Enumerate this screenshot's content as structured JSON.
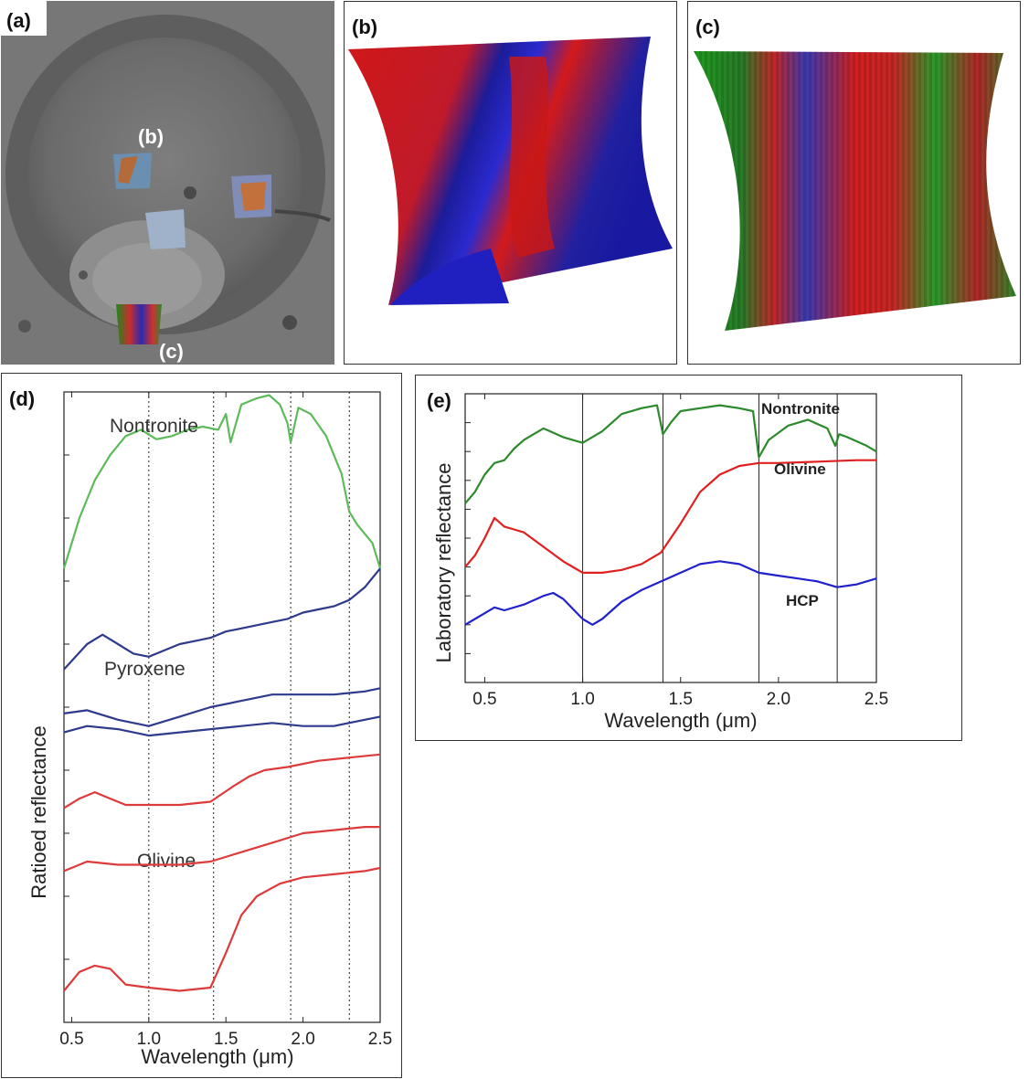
{
  "panels": {
    "a": {
      "label": "(a)",
      "inset_b": "(b)",
      "inset_c": "(c)"
    },
    "b": {
      "label": "(b)"
    },
    "c": {
      "label": "(c)"
    }
  },
  "colors": {
    "nontronite": "#5dbb5a",
    "pyroxene": "#2e3a8c",
    "olivine": "#dd3b3b",
    "lab_green": "#2b8a2b",
    "lab_red": "#e02020",
    "lab_blue": "#2222cc"
  },
  "chart_data": [
    {
      "panel_label": "(d)",
      "type": "line",
      "xlabel": "Wavelength (μm)",
      "ylabel": "Ratioed reflectance",
      "xlim": [
        0.45,
        2.5
      ],
      "x_ticks": [
        "0.5",
        "1.0",
        "1.5",
        "2.0",
        "2.5"
      ],
      "vlines": [
        1.0,
        1.42,
        1.92,
        2.3
      ],
      "series": [
        {
          "name": "Nontronite",
          "x": [
            0.45,
            0.55,
            0.65,
            0.75,
            0.85,
            0.95,
            1.05,
            1.15,
            1.25,
            1.35,
            1.45,
            1.5,
            1.53,
            1.6,
            1.7,
            1.78,
            1.85,
            1.9,
            1.92,
            1.97,
            2.05,
            2.15,
            2.25,
            2.3,
            2.35,
            2.45,
            2.5
          ],
          "y": [
            0.72,
            0.8,
            0.86,
            0.9,
            0.93,
            0.94,
            0.925,
            0.93,
            0.94,
            0.945,
            0.94,
            0.965,
            0.92,
            0.98,
            0.99,
            0.995,
            0.98,
            0.95,
            0.92,
            0.975,
            0.965,
            0.93,
            0.87,
            0.81,
            0.79,
            0.76,
            0.72
          ]
        },
        {
          "name": "Pyroxene",
          "x": [
            0.45,
            0.6,
            0.7,
            0.8,
            0.9,
            1.0,
            1.1,
            1.2,
            1.3,
            1.4,
            1.5,
            1.6,
            1.7,
            1.8,
            1.9,
            2.0,
            2.1,
            2.2,
            2.3,
            2.4,
            2.5
          ],
          "y": [
            0.56,
            0.6,
            0.615,
            0.6,
            0.585,
            0.58,
            0.59,
            0.6,
            0.605,
            0.61,
            0.62,
            0.625,
            0.63,
            0.635,
            0.64,
            0.65,
            0.655,
            0.66,
            0.67,
            0.69,
            0.72
          ]
        },
        {
          "name": "",
          "x": [
            0.45,
            0.6,
            0.8,
            1.0,
            1.2,
            1.4,
            1.6,
            1.8,
            2.0,
            2.2,
            2.4,
            2.5
          ],
          "y": [
            0.49,
            0.495,
            0.48,
            0.47,
            0.485,
            0.5,
            0.51,
            0.52,
            0.52,
            0.52,
            0.525,
            0.53
          ]
        },
        {
          "name": "",
          "x": [
            0.45,
            0.6,
            0.8,
            1.0,
            1.2,
            1.4,
            1.6,
            1.8,
            2.0,
            2.2,
            2.4,
            2.5
          ],
          "y": [
            0.46,
            0.47,
            0.465,
            0.455,
            0.46,
            0.465,
            0.47,
            0.475,
            0.47,
            0.47,
            0.48,
            0.485
          ]
        },
        {
          "name": "Olivine",
          "x": [
            0.45,
            0.55,
            0.65,
            0.75,
            0.85,
            1.0,
            1.2,
            1.4,
            1.55,
            1.65,
            1.75,
            1.9,
            2.1,
            2.3,
            2.5
          ],
          "y": [
            0.34,
            0.355,
            0.365,
            0.355,
            0.345,
            0.345,
            0.345,
            0.35,
            0.375,
            0.39,
            0.4,
            0.405,
            0.415,
            0.42,
            0.425
          ]
        },
        {
          "name": "",
          "x": [
            0.45,
            0.6,
            0.8,
            1.0,
            1.2,
            1.4,
            1.6,
            1.8,
            2.0,
            2.2,
            2.4,
            2.5
          ],
          "y": [
            0.24,
            0.255,
            0.25,
            0.25,
            0.25,
            0.255,
            0.27,
            0.285,
            0.3,
            0.305,
            0.31,
            0.31
          ]
        },
        {
          "name": "",
          "x": [
            0.45,
            0.55,
            0.65,
            0.75,
            0.85,
            1.0,
            1.2,
            1.4,
            1.5,
            1.6,
            1.7,
            1.85,
            2.0,
            2.2,
            2.4,
            2.5
          ],
          "y": [
            0.05,
            0.08,
            0.09,
            0.085,
            0.06,
            0.055,
            0.05,
            0.055,
            0.11,
            0.17,
            0.2,
            0.22,
            0.23,
            0.235,
            0.24,
            0.245
          ]
        }
      ]
    },
    {
      "panel_label": "(e)",
      "type": "line",
      "xlabel": "Wavelength (μm)",
      "ylabel": "Laboratory reflectance",
      "xlim": [
        0.4,
        2.5
      ],
      "x_ticks": [
        "0.5",
        "1.0",
        "1.5",
        "2.0",
        "2.5"
      ],
      "vlines": [
        1.0,
        1.41,
        1.9,
        2.3
      ],
      "series": [
        {
          "name": "Nontronite",
          "x": [
            0.4,
            0.45,
            0.5,
            0.55,
            0.6,
            0.65,
            0.7,
            0.75,
            0.8,
            0.9,
            1.0,
            1.1,
            1.2,
            1.3,
            1.38,
            1.41,
            1.45,
            1.5,
            1.6,
            1.7,
            1.8,
            1.87,
            1.9,
            1.95,
            2.05,
            2.15,
            2.25,
            2.29,
            2.31,
            2.35,
            2.45,
            2.5
          ],
          "y": [
            0.62,
            0.66,
            0.72,
            0.76,
            0.77,
            0.81,
            0.84,
            0.86,
            0.88,
            0.85,
            0.83,
            0.87,
            0.93,
            0.95,
            0.96,
            0.86,
            0.9,
            0.94,
            0.95,
            0.96,
            0.95,
            0.94,
            0.78,
            0.84,
            0.89,
            0.91,
            0.88,
            0.82,
            0.86,
            0.85,
            0.82,
            0.8
          ]
        },
        {
          "name": "Olivine",
          "x": [
            0.4,
            0.45,
            0.5,
            0.55,
            0.6,
            0.65,
            0.7,
            0.8,
            0.9,
            1.0,
            1.1,
            1.2,
            1.3,
            1.4,
            1.5,
            1.6,
            1.7,
            1.8,
            1.9,
            2.0,
            2.2,
            2.4,
            2.5
          ],
          "y": [
            0.4,
            0.44,
            0.5,
            0.57,
            0.54,
            0.53,
            0.52,
            0.47,
            0.42,
            0.38,
            0.38,
            0.39,
            0.41,
            0.45,
            0.55,
            0.66,
            0.72,
            0.75,
            0.76,
            0.76,
            0.765,
            0.77,
            0.77
          ]
        },
        {
          "name": "HCP",
          "x": [
            0.4,
            0.45,
            0.5,
            0.55,
            0.6,
            0.7,
            0.8,
            0.85,
            0.9,
            1.0,
            1.05,
            1.1,
            1.2,
            1.3,
            1.4,
            1.5,
            1.6,
            1.7,
            1.8,
            1.9,
            2.0,
            2.1,
            2.2,
            2.3,
            2.4,
            2.5
          ],
          "y": [
            0.2,
            0.22,
            0.24,
            0.26,
            0.25,
            0.27,
            0.3,
            0.31,
            0.29,
            0.22,
            0.2,
            0.22,
            0.28,
            0.32,
            0.35,
            0.38,
            0.41,
            0.42,
            0.41,
            0.38,
            0.37,
            0.36,
            0.35,
            0.33,
            0.34,
            0.36
          ]
        }
      ]
    }
  ]
}
